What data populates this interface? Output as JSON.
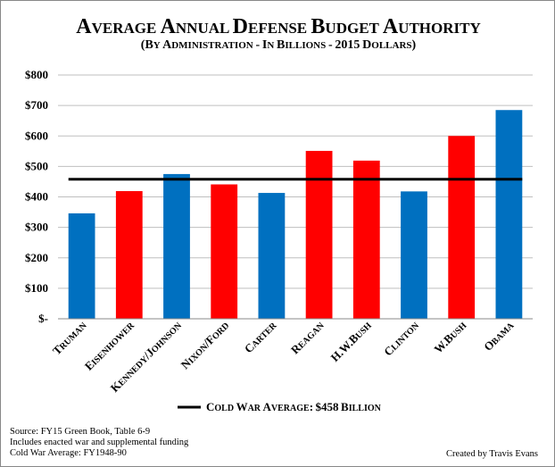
{
  "chart_data": {
    "type": "bar",
    "title": "Average Annual Defense Budget Authority",
    "subtitle": "(By Administration - In Billions - 2015 Dollars)",
    "categories": [
      "Truman",
      "Eisenhower",
      "Kennedy/Johnson",
      "Nixon/Ford",
      "Carter",
      "Reagan",
      "H.W.Bush",
      "Clinton",
      "W.Bush",
      "Obama"
    ],
    "values": [
      346,
      419,
      475,
      441,
      413,
      551,
      519,
      418,
      600,
      685
    ],
    "parties": [
      "D",
      "R",
      "D",
      "R",
      "D",
      "R",
      "R",
      "D",
      "R",
      "D"
    ],
    "colors": {
      "D": "#0070C0",
      "R": "#FF0000",
      "average_line": "#000000"
    },
    "ylim": [
      0,
      800
    ],
    "yticks": [
      0,
      100,
      200,
      300,
      400,
      500,
      600,
      700,
      800
    ],
    "ytick_labels": [
      "$-",
      "$100",
      "$200",
      "$300",
      "$400",
      "$500",
      "$600",
      "$700",
      "$800"
    ],
    "grid": true,
    "reference_line": {
      "value": 458,
      "label": "Cold War Average:  $458 Billion"
    },
    "legend_position": "bottom"
  },
  "notes": [
    "Source:  FY15 Green Book, Table 6-9",
    "Includes enacted war and supplemental funding",
    "Cold War Average: FY1948-90"
  ],
  "credit": "Created by Travis Evans"
}
